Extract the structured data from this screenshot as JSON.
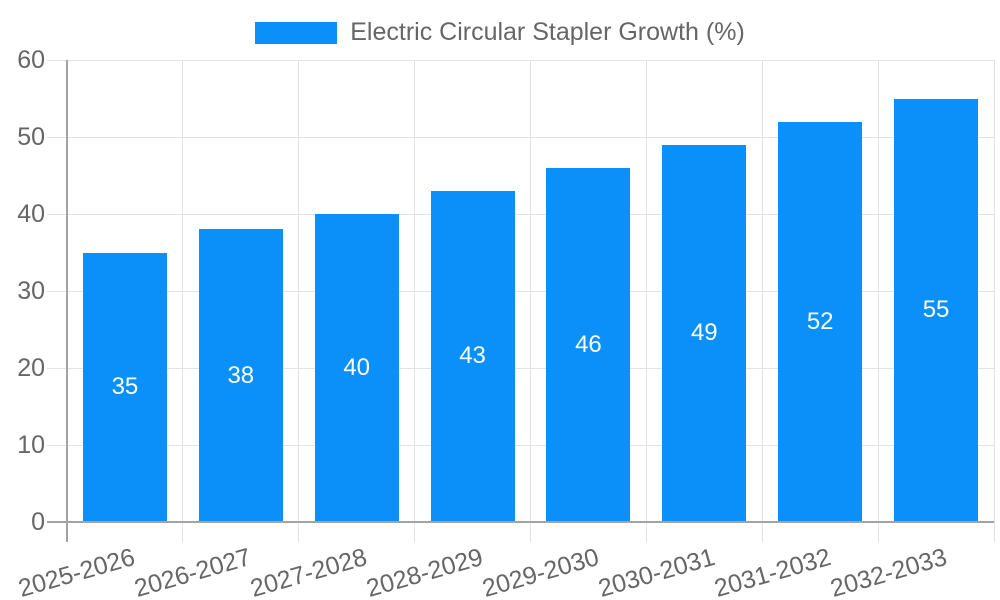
{
  "chart_data": {
    "type": "bar",
    "title": "Electric Circular Stapler Growth (%)",
    "legend": {
      "label": "Electric Circular Stapler Growth (%)",
      "position": "top"
    },
    "categories": [
      "2025-2026",
      "2026-2027",
      "2027-2028",
      "2028-2029",
      "2029-2030",
      "2030-2031",
      "2031-2032",
      "2032-2033"
    ],
    "series": [
      {
        "name": "Electric Circular Stapler Growth (%)",
        "values": [
          35,
          38,
          40,
          43,
          46,
          49,
          52,
          55
        ]
      }
    ],
    "value_labels_shown": true,
    "xlabel": "",
    "ylabel": "",
    "ylim": [
      0,
      60
    ],
    "yticks": [
      0,
      10,
      20,
      30,
      40,
      50,
      60
    ],
    "grid": true,
    "x_label_rotation_deg": -16,
    "colors": {
      "bar": "#0A90F8",
      "value_label": "#FFFFFF",
      "grid_line": "#E3E3E3",
      "axis_line": "#A3A3A3",
      "tick_label": "#666666",
      "legend_text": "#666666",
      "background": "#FFFFFF"
    }
  }
}
